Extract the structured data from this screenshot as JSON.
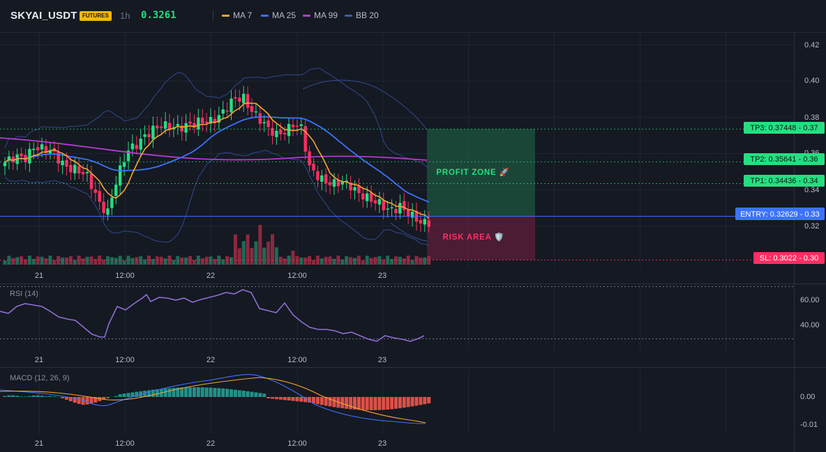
{
  "header": {
    "symbol": "SKYAI_USDT",
    "badge": "FUTURES",
    "timeframe": "1h",
    "price": "0.3261",
    "legend": [
      {
        "label": "MA 7",
        "color": "#f7a531"
      },
      {
        "label": "MA 25",
        "color": "#3b73ff"
      },
      {
        "label": "MA 99",
        "color": "#b23cd0"
      },
      {
        "label": "BB 20",
        "color": "#3a5caa"
      }
    ]
  },
  "main_chart": {
    "y_ticks": [
      "0.42",
      "0.40",
      "0.38",
      "0.36",
      "0.34",
      "0.32"
    ],
    "y_ticks_hidden_by_tags": [
      "0.36",
      "0.34"
    ],
    "x_ticks": [
      "21",
      "12:00",
      "22",
      "12:00",
      "23"
    ],
    "zones": {
      "profit_label": "PROFIT ZONE 🚀",
      "risk_label": "RISK AREA 🛡️"
    },
    "tags": {
      "tp3": "TP3: 0.37448 - 0.37",
      "tp2": "TP2: 0.35641 - 0.36",
      "tp1": "TP1: 0.34436 - 0.34",
      "entry": "ENTRY: 0.32629 - 0.33",
      "sl": "SL: 0.3022 - 0.30"
    },
    "colors": {
      "up": "#26de81",
      "down": "#ff2e63",
      "tp_line": "#26de81",
      "entry_line": "#3b73ff",
      "sl_line": "#ff2e63"
    }
  },
  "rsi_panel": {
    "title": "RSI (14)",
    "y_ticks": [
      "60.00",
      "40.00"
    ],
    "x_ticks": [
      "21",
      "12:00",
      "22",
      "12:00",
      "23"
    ]
  },
  "macd_panel": {
    "title": "MACD (12, 26, 9)",
    "y_ticks": [
      "0.00",
      "-0.01"
    ],
    "x_ticks": [
      "21",
      "12:00",
      "22",
      "12:00",
      "23"
    ]
  }
}
